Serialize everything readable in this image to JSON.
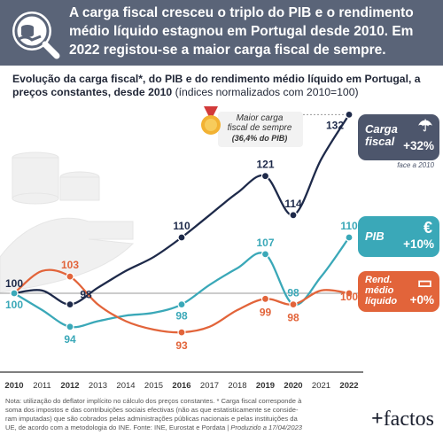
{
  "headline": "A carga fiscal cresceu o triplo do PIB e o rendimento médio líquido estagnou em Portugal desde 2010. Em 2022 registou-se a maior carga fiscal de sempre.",
  "subtitle": {
    "bold": "Evolução da carga fiscal*, do PIB e do rendimento médio líquido em Portugal, a preços constantes, desde 2010",
    "normal": " (índices normalizados com 2010=100)"
  },
  "annotation": {
    "line1": "Maior carga",
    "line2": "fiscal de sempre",
    "line3": "(36,4% do PIB)"
  },
  "panels": {
    "carga": {
      "name_line1": "Carga",
      "name_line2": "fiscal",
      "pct": "+32%",
      "sub": "face a 2010",
      "color": "#4d566c",
      "icon": "tax-icon"
    },
    "pib": {
      "name": "PIB",
      "pct": "+10%",
      "color": "#3aa8b8",
      "icon": "money-bag-icon"
    },
    "rend": {
      "name_line1": "Rend.",
      "name_line2": "médio",
      "name_line3": "líquido",
      "pct": "+0%",
      "color": "#e2643a",
      "icon": "wallet-icon"
    }
  },
  "notes": {
    "line1": "Nota: utilização do deflator implícito no cálculo dos preços constantes. * Carga fiscal corresponde à",
    "line2": "soma dos impostos e das contribuições sociais efectivas (não as que estatisticamente se conside-",
    "line3": "ram imputadas) que são cobrados pelas administrações públicas nacionais e pelas instituições da",
    "line4": "UE, de acordo com a metodologia do INE. Fonte: INE, Eurostat e Pordata | ",
    "produced": "Produzido a 17/04/2023"
  },
  "brand": {
    "plus": "+",
    "name": "factos"
  },
  "chart_data": {
    "type": "line",
    "x": [
      "2010",
      "2011",
      "2012",
      "2013",
      "2014",
      "2015",
      "2016",
      "2017",
      "2018",
      "2019",
      "2020",
      "2021",
      "2022"
    ],
    "bold_ticks": [
      "2010",
      "2012",
      "2016",
      "2019",
      "2020",
      "2022"
    ],
    "baseline": 100,
    "series": [
      {
        "key": "carga",
        "color": "#1e2a4a",
        "values": [
          100,
          100.5,
          98,
          101,
          104,
          106.5,
          110,
          114,
          118,
          121,
          114,
          124,
          132
        ],
        "labels": [
          {
            "year": "2010",
            "text": "100"
          },
          {
            "year": "2012",
            "text": "98"
          },
          {
            "year": "2016",
            "text": "110"
          },
          {
            "year": "2019",
            "text": "121"
          },
          {
            "year": "2020",
            "text": "114"
          },
          {
            "year": "2022",
            "text": "132"
          }
        ]
      },
      {
        "key": "pib",
        "color": "#3aa8b8",
        "values": [
          100,
          97,
          94,
          95,
          96,
          96.5,
          98,
          101.5,
          104.5,
          107,
          98,
          103,
          110
        ],
        "labels": [
          {
            "year": "2010",
            "text": "100"
          },
          {
            "year": "2012",
            "text": "94"
          },
          {
            "year": "2016",
            "text": "98"
          },
          {
            "year": "2019",
            "text": "107"
          },
          {
            "year": "2020",
            "text": "98"
          },
          {
            "year": "2022",
            "text": "110"
          }
        ]
      },
      {
        "key": "rend",
        "color": "#e2643a",
        "values": [
          100,
          104,
          103,
          98,
          95,
          93.5,
          93,
          94,
          97,
          99,
          98,
          100.5,
          100
        ],
        "labels": [
          {
            "year": "2012",
            "text": "103"
          },
          {
            "year": "2016",
            "text": "93"
          },
          {
            "year": "2019",
            "text": "99"
          },
          {
            "year": "2020",
            "text": "98"
          },
          {
            "year": "2022",
            "text": "100"
          }
        ]
      }
    ]
  }
}
